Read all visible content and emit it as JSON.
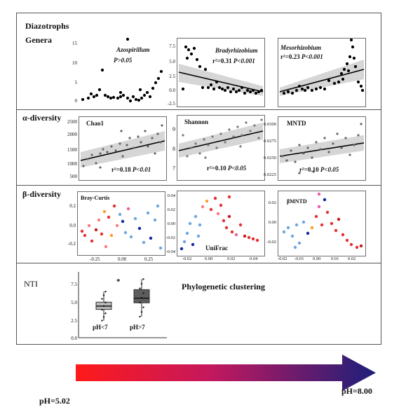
{
  "header": {
    "title": "Diazotrophs"
  },
  "rows": {
    "genera": {
      "label": "Genera"
    },
    "alpha": {
      "label": "α-diversity"
    },
    "beta": {
      "label": "β-diversity"
    },
    "nti": {
      "label": "NTI"
    }
  },
  "panels": {
    "azospirillum": {
      "title": "Azospirillum",
      "stat": "P>0.05",
      "yticks": [
        "15",
        "10",
        "5",
        "0"
      ]
    },
    "bradyrhizobium": {
      "title": "Bradyrhizobium",
      "stat_r2": "r²=0.31",
      "stat_p": "P<0.001",
      "yticks": [
        "7.5",
        "5.0",
        "2.5",
        "0.0",
        "-2.5"
      ]
    },
    "mesorhizobium": {
      "title": "Mesorhizobium",
      "stat_r2": "r²=0.23",
      "stat_p": "P<0.001",
      "yticks": []
    },
    "chao1": {
      "title": "Chao1",
      "stat_r2": "r²=0.18",
      "stat_p": "P<0.01",
      "yticks": [
        "2500",
        "2000",
        "1500",
        "1000",
        "500"
      ]
    },
    "shannon": {
      "title": "Shannon",
      "stat_r2": "r²=0.10",
      "stat_p": "P<0.05",
      "yticks": [
        "9",
        "8",
        "7"
      ]
    },
    "mntd": {
      "title": "MNTD",
      "stat_r2": "r²=0.10",
      "stat_p": "P<0.05",
      "yticks": [
        "0.0300",
        "0.0275",
        "0.0250",
        "0.0225"
      ]
    },
    "braycurtis": {
      "title": "Bray-Curtis",
      "yticks": [
        "0.2",
        "0.0",
        "-0.2"
      ],
      "xticks": [
        "-0.25",
        "0.00",
        "0.25"
      ]
    },
    "unifrac": {
      "title": "UniFrac",
      "yticks": [
        "0.04",
        "0.02",
        "0.00",
        "-0.02",
        "-0.04"
      ],
      "xticks": [
        "-0.02",
        "0.00",
        "0.02",
        "0.04"
      ]
    },
    "bmntd": {
      "title": "βMNTD",
      "yticks": [
        "0.02",
        "0.00",
        "-0.02"
      ],
      "xticks": [
        "-0.02",
        "-0.01",
        "0.00",
        "0.01",
        "0.02"
      ]
    },
    "nti_box": {
      "yticks": [
        "7.5",
        "5.0",
        "2.5",
        "0.0"
      ],
      "groups": [
        {
          "label": "pH<7",
          "q1": 4.3,
          "median": 4.8,
          "q3": 5.4,
          "low": 2.6,
          "high": 7.0,
          "color": "#b9b9b9"
        },
        {
          "label": "pH>7",
          "q1": 5.3,
          "median": 6.0,
          "q3": 7.3,
          "low": 3.2,
          "high": 8.9,
          "color": "#5d5d5d"
        }
      ],
      "sig": "*"
    }
  },
  "nti_note": "Phylogenetic clustering",
  "gradient": {
    "start_label": "pH=5.02",
    "end_label": "pH=8.00",
    "start_color": "#ff1a1a",
    "end_color": "#1c1f7a"
  }
}
